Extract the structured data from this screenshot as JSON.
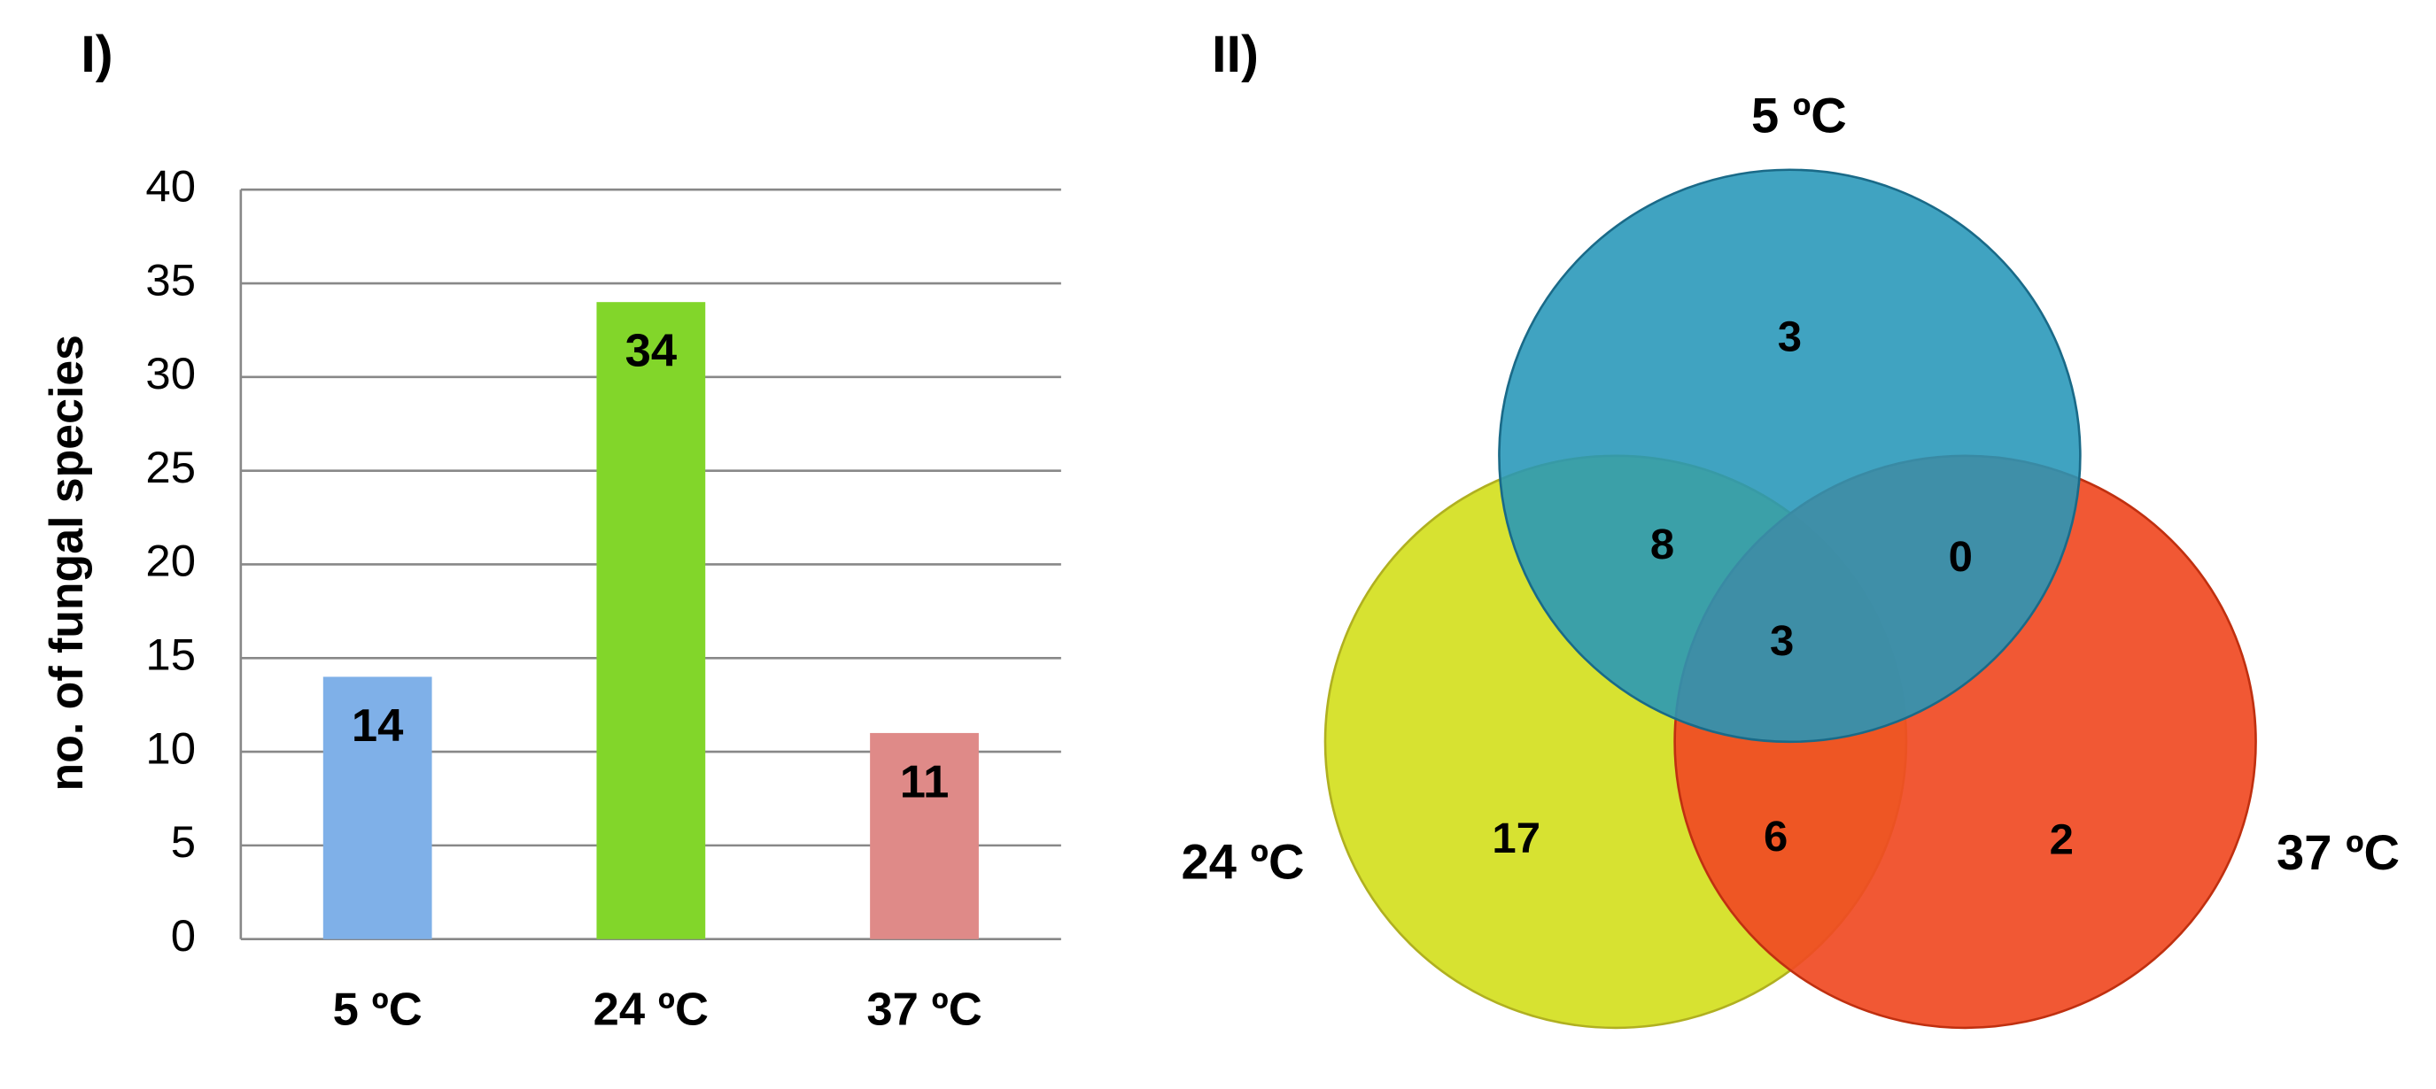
{
  "chart_data": [
    {
      "type": "bar",
      "panel_label": "I)",
      "y_label": "no. of fungal species",
      "categories": [
        "5 ºC",
        "24 ºC",
        "37 ºC"
      ],
      "values": [
        14,
        34,
        11
      ],
      "colors": [
        "#7fb0e8",
        "#82d62a",
        "#df8a88"
      ],
      "ylim": [
        0,
        40
      ],
      "yticks": [
        0,
        5,
        10,
        15,
        20,
        25,
        30,
        35,
        40
      ],
      "grid": true
    },
    {
      "type": "venn",
      "panel_label": "II)",
      "sets": [
        {
          "name": "5 ºC",
          "color": "#2596b8"
        },
        {
          "name": "24 ºC",
          "color": "#d4e020"
        },
        {
          "name": "37 ºC",
          "color": "#f04a23"
        }
      ],
      "values": [
        3,
        8,
        0,
        3,
        17,
        6,
        2
      ]
    }
  ]
}
